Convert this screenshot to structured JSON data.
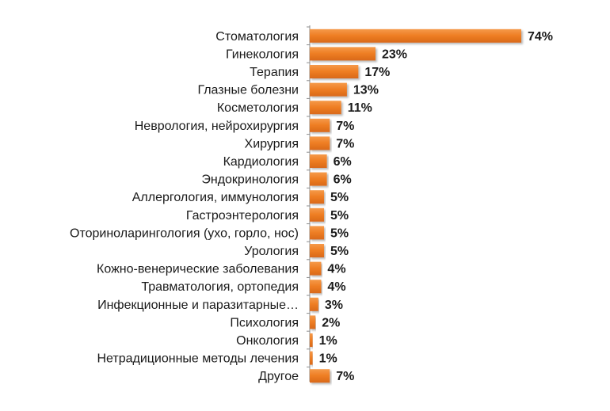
{
  "chart_data": {
    "type": "bar",
    "orientation": "horizontal",
    "title": "",
    "xlabel": "",
    "ylabel": "",
    "xlim": [
      0,
      74
    ],
    "grid": false,
    "legend": "none",
    "bar_color": "#ee7d22",
    "value_suffix": "%",
    "categories": [
      "Стоматология",
      "Гинекология",
      "Терапия",
      "Глазные болезни",
      "Косметология",
      "Неврология, нейрохирургия",
      "Хирургия",
      "Кардиология",
      "Эндокринология",
      "Аллергология, иммунология",
      "Гастроэнтерология",
      "Оториноларингология (ухо, горло, нос)",
      "Урология",
      "Кожно-венерические заболевания",
      "Травматология, ортопедия",
      "Инфекционные и паразитарные…",
      "Психология",
      "Онкология",
      "Нетрадиционные методы лечения",
      "Другое"
    ],
    "values": [
      74,
      23,
      17,
      13,
      11,
      7,
      7,
      6,
      6,
      5,
      5,
      5,
      5,
      4,
      4,
      3,
      2,
      1,
      1,
      7
    ],
    "data_labels": [
      "74%",
      "23%",
      "17%",
      "13%",
      "11%",
      "7%",
      "7%",
      "6%",
      "6%",
      "5%",
      "5%",
      "5%",
      "5%",
      "4%",
      "4%",
      "3%",
      "2%",
      "1%",
      "1%",
      "7%"
    ]
  }
}
